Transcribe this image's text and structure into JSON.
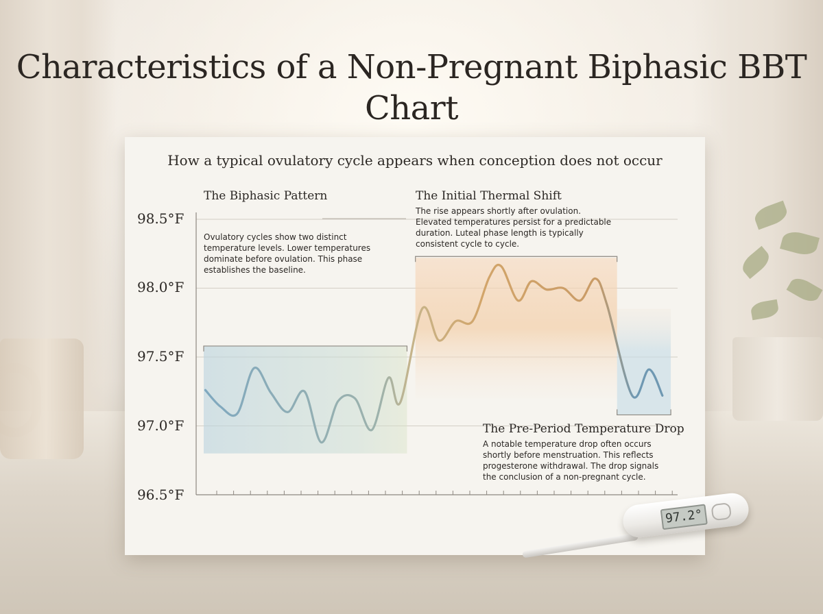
{
  "chart_data": {
    "type": "line",
    "title": "Characteristics of a Non-Pregnant Biphasic BBT Chart",
    "subtitle": "How a typical ovulatory cycle appears when conception does not occur",
    "ylabel": "",
    "xlabel": "",
    "ylim": [
      96.5,
      98.5
    ],
    "yticks": [
      "98.5°F",
      "98.0°F",
      "97.5°F",
      "97.0°F",
      "96.5°F"
    ],
    "grid": true,
    "series": [
      {
        "values": [
          {
            "x": 0.1,
            "y": 97.26
          },
          {
            "x": 1,
            "y": 97.14
          },
          {
            "x": 2,
            "y": 97.09
          },
          {
            "x": 3,
            "y": 97.42
          },
          {
            "x": 4,
            "y": 97.24
          },
          {
            "x": 5,
            "y": 97.1
          },
          {
            "x": 6,
            "y": 97.25
          },
          {
            "x": 7,
            "y": 96.88
          },
          {
            "x": 8,
            "y": 97.18
          },
          {
            "x": 9,
            "y": 97.2
          },
          {
            "x": 10,
            "y": 96.97
          },
          {
            "x": 11,
            "y": 97.35
          },
          {
            "x": 11.7,
            "y": 97.17
          },
          {
            "x": 13,
            "y": 97.85
          },
          {
            "x": 14,
            "y": 97.62
          },
          {
            "x": 15,
            "y": 97.76
          },
          {
            "x": 16,
            "y": 97.76
          },
          {
            "x": 17,
            "y": 98.08
          },
          {
            "x": 17.7,
            "y": 98.16
          },
          {
            "x": 18.7,
            "y": 97.91
          },
          {
            "x": 19.5,
            "y": 98.05
          },
          {
            "x": 20.4,
            "y": 97.99
          },
          {
            "x": 21.4,
            "y": 98.0
          },
          {
            "x": 22.4,
            "y": 97.91
          },
          {
            "x": 23.3,
            "y": 98.07
          },
          {
            "x": 24,
            "y": 97.88
          },
          {
            "x": 25.5,
            "y": 97.22
          },
          {
            "x": 26.5,
            "y": 97.41
          },
          {
            "x": 27.3,
            "y": 97.22
          }
        ]
      }
    ],
    "annotations": [
      {
        "title": "The Biphasic Pattern",
        "text": "Ovulatory cycles show two distinct temperature levels. Lower temperatures dominate before ovulation. This phase establishes the baseline.",
        "lines": [
          "Ovulatory cycles show two distinct",
          "temperature levels. Lower temperatures",
          "dominate before ovulation. This phase",
          "establishes the baseline."
        ],
        "color": "#b9d3de"
      },
      {
        "title": "The Initial Thermal Shift",
        "text": "The rise appears shortly after ovulation. Elevated temperatures persist for a predictable duration. Luteal phase length is typically consistent cycle to cycle.",
        "lines": [
          "The rise appears shortly after ovulation.",
          "Elevated temperatures persist for a predictable",
          "duration. Luteal phase length is typically",
          "consistent cycle to cycle."
        ],
        "color": "#f0c79a"
      },
      {
        "title": "The Pre-Period Temperature Drop",
        "text": "A notable temperature drop often occurs shortly before menstruation. This reflects progesterone withdrawal. The drop signals the conclusion of a non-pregnant cycle.",
        "lines": [
          "A notable temperature drop often occurs",
          "shortly before menstruation. This reflects",
          "progesterone withdrawal. The drop signals",
          "the conclusion of a non-pregnant cycle."
        ],
        "color": "#c4dbe6"
      }
    ],
    "colors": {
      "low_phase": "#7fa8bf",
      "transition": "#b9b48a",
      "high_phase": "#d2a56a",
      "drop_phase": "#6f98b2"
    }
  },
  "thermometer": {
    "reading": "97.2°"
  }
}
